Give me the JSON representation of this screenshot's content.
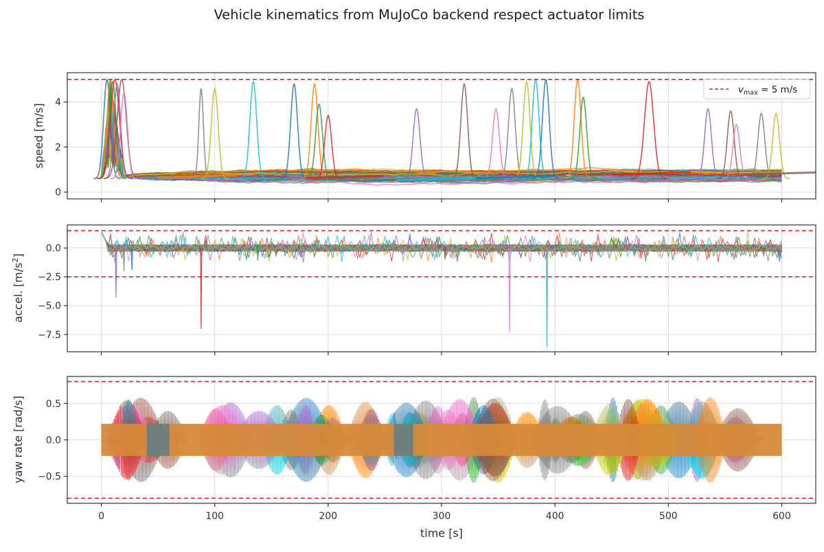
{
  "figure": {
    "title": "Vehicle kinematics from MuJoCo backend respect actuator limits"
  },
  "colors": {
    "palette": [
      "#1f77b4",
      "#ff7f0e",
      "#2ca02c",
      "#d62728",
      "#9467bd",
      "#8c564b",
      "#e377c2",
      "#7f7f7f",
      "#bcbd22",
      "#17becf"
    ],
    "limit": "#d62728",
    "axes": "#2a3142",
    "grid": "#dcdcdc"
  },
  "chart_data": [
    {
      "type": "line",
      "panel": "speed",
      "xlabel": "",
      "ylabel": "speed [m/s]",
      "xlim": [
        -30,
        630
      ],
      "ylim": [
        -0.3,
        5.3
      ],
      "xticks": [
        0,
        100,
        200,
        300,
        400,
        500,
        600
      ],
      "yticks": [
        0,
        2,
        4
      ],
      "ytick_labels": [
        "0",
        "2",
        "4"
      ],
      "grid": true,
      "legend": {
        "position": "top-right",
        "entries": [
          {
            "label_main": "v",
            "label_sub": "max",
            "label_rest": " = 5 m/s",
            "style": "dashed-red"
          }
        ]
      },
      "limits": [
        5.0
      ],
      "baseline": 0.72,
      "n_series": 60,
      "peaks": [
        [
          5,
          5.0,
          3
        ],
        [
          8,
          5.0,
          3
        ],
        [
          10,
          4.9,
          3
        ],
        [
          12,
          5.0,
          4
        ],
        [
          14,
          4.8,
          3
        ],
        [
          18,
          5.0,
          4
        ],
        [
          20,
          4.4,
          3
        ],
        [
          88,
          4.6,
          2
        ],
        [
          100,
          4.6,
          3
        ],
        [
          134,
          4.9,
          3
        ],
        [
          170,
          4.8,
          3
        ],
        [
          188,
          4.8,
          3
        ],
        [
          192,
          3.9,
          3
        ],
        [
          200,
          3.4,
          3
        ],
        [
          278,
          3.7,
          3
        ],
        [
          320,
          4.8,
          3
        ],
        [
          348,
          3.7,
          3
        ],
        [
          362,
          4.6,
          3
        ],
        [
          375,
          4.9,
          3
        ],
        [
          383,
          5.0,
          3
        ],
        [
          392,
          5.0,
          3
        ],
        [
          420,
          5.0,
          3
        ],
        [
          425,
          4.2,
          3
        ],
        [
          483,
          4.9,
          4
        ],
        [
          535,
          3.7,
          3
        ],
        [
          555,
          3.6,
          3
        ],
        [
          560,
          3.0,
          3
        ],
        [
          582,
          3.5,
          3
        ],
        [
          595,
          3.5,
          3
        ]
      ]
    },
    {
      "type": "line",
      "panel": "acceleration",
      "xlabel": "",
      "ylabel": "accel. [m/s²]",
      "ylabel_main": "accel. [m/s",
      "ylabel_sup": "2",
      "ylabel_end": "]",
      "xlim": [
        -30,
        630
      ],
      "ylim": [
        -9.0,
        2.0
      ],
      "xticks": [
        0,
        100,
        200,
        300,
        400,
        500,
        600
      ],
      "yticks": [
        0.0,
        -2.5,
        -5.0,
        -7.5
      ],
      "ytick_labels": [
        "0.0",
        "−2.5",
        "−5.0",
        "−7.5"
      ],
      "grid": true,
      "limits": [
        1.5,
        -2.5
      ],
      "spikes": [
        [
          13,
          -4.3
        ],
        [
          20,
          -2.0
        ],
        [
          27,
          -1.9
        ],
        [
          88,
          -7.0
        ],
        [
          360,
          -7.3
        ],
        [
          393,
          -8.6
        ],
        [
          138,
          -1.1
        ],
        [
          303,
          -1.0
        ]
      ],
      "n_series": 60
    },
    {
      "type": "line",
      "panel": "yaw-rate",
      "xlabel": "time [s]",
      "ylabel": "yaw rate [rad/s]",
      "xlim": [
        -30,
        630
      ],
      "ylim": [
        -0.87,
        0.87
      ],
      "xticks": [
        0,
        100,
        200,
        300,
        400,
        500,
        600
      ],
      "xtick_labels": [
        "0",
        "100",
        "200",
        "300",
        "400",
        "500",
        "600"
      ],
      "yticks": [
        0.5,
        0.0,
        -0.5
      ],
      "ytick_labels": [
        "0.5",
        "0.0",
        "−0.5"
      ],
      "grid": true,
      "limits": [
        0.8,
        -0.8
      ],
      "dominant_band": {
        "t_start": 0,
        "t_end": 600,
        "amplitude": 0.22
      },
      "n_series": 60
    }
  ]
}
